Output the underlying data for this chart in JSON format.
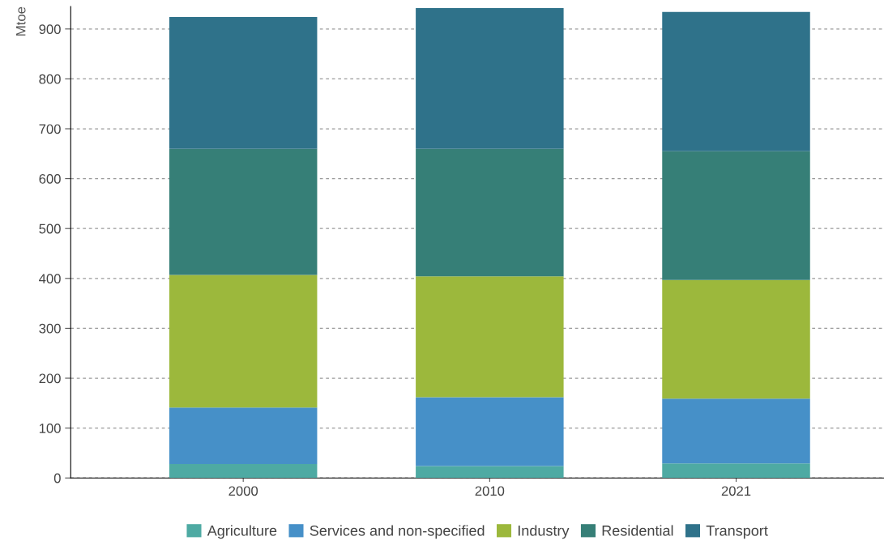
{
  "chart_data": {
    "type": "bar",
    "stacked": true,
    "ylabel": "Mtoe",
    "categories": [
      "2000",
      "2010",
      "2021"
    ],
    "series": [
      {
        "name": "Agriculture",
        "color": "#4eaaa3",
        "values": [
          28,
          24,
          29
        ]
      },
      {
        "name": "Services and non-specified",
        "color": "#4690c8",
        "values": [
          113,
          138,
          130
        ]
      },
      {
        "name": "Industry",
        "color": "#9cb83c",
        "values": [
          266,
          242,
          238
        ]
      },
      {
        "name": "Residential",
        "color": "#367f77",
        "values": [
          253,
          256,
          258
        ]
      },
      {
        "name": "Transport",
        "color": "#2f728a",
        "values": [
          264,
          282,
          279
        ]
      }
    ],
    "ylim": [
      0,
      945
    ],
    "yticks": [
      0,
      100,
      200,
      300,
      400,
      500,
      600,
      700,
      800,
      900
    ],
    "grid": "y",
    "legend": "bottom"
  }
}
